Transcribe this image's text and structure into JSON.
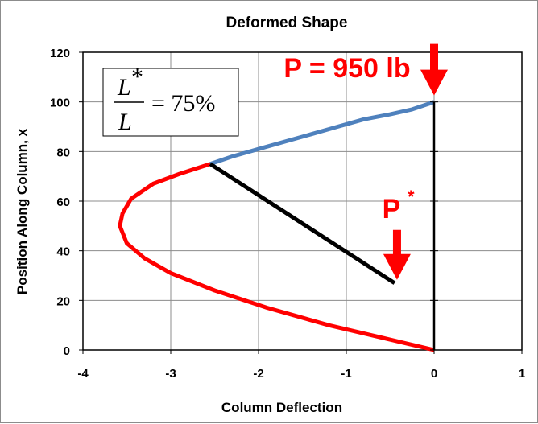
{
  "chart_data": {
    "type": "line",
    "title": "Deformed Shape",
    "xlabel": "Column Deflection",
    "ylabel": "Position Along Column, x",
    "xlim": [
      -4,
      1
    ],
    "ylim": [
      0,
      120
    ],
    "xticks": [
      "-4",
      "-3",
      "-2",
      "-1",
      "0",
      "1"
    ],
    "yticks": [
      "0",
      "20",
      "40",
      "60",
      "80",
      "100",
      "120"
    ],
    "grid": true,
    "series": [
      {
        "color": "#ff0000",
        "points": [
          [
            0,
            0
          ],
          [
            -0.6,
            5
          ],
          [
            -1.2,
            10
          ],
          [
            -1.9,
            17
          ],
          [
            -2.5,
            24
          ],
          [
            -3.0,
            31
          ],
          [
            -3.3,
            37
          ],
          [
            -3.5,
            43
          ],
          [
            -3.58,
            50
          ],
          [
            -3.55,
            55
          ],
          [
            -3.45,
            61
          ],
          [
            -3.2,
            67
          ],
          [
            -2.9,
            71
          ],
          [
            -2.55,
            75
          ]
        ]
      },
      {
        "color": "#4f81bd",
        "points": [
          [
            -2.55,
            75
          ],
          [
            -2.3,
            78
          ],
          [
            -2.0,
            81
          ],
          [
            -1.7,
            84
          ],
          [
            -1.4,
            87
          ],
          [
            -1.1,
            90
          ],
          [
            -0.8,
            93
          ],
          [
            -0.5,
            95
          ],
          [
            -0.25,
            97
          ],
          [
            0,
            100
          ]
        ]
      },
      {
        "color": "#000000",
        "points": [
          [
            -2.55,
            75
          ],
          [
            -0.45,
            27
          ]
        ]
      },
      {
        "color": "#000000",
        "points": [
          [
            0,
            0
          ],
          [
            0,
            100
          ]
        ]
      }
    ],
    "annotations": {
      "load_label": "P = 950 lb",
      "load_at": [
        0,
        100
      ],
      "pstar_main": "P",
      "pstar_sup": "*",
      "pstar_at": [
        -0.45,
        27
      ],
      "box_numerator": "L",
      "box_numerator_sup": "*",
      "box_denominator": "L",
      "box_rhs": "= 75%"
    }
  }
}
